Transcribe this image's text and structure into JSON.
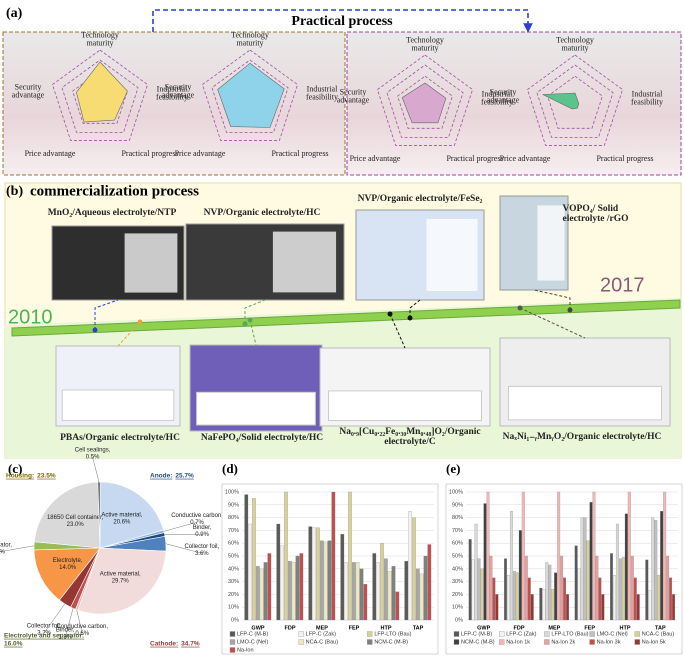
{
  "panel_a": {
    "label": "(a)",
    "title": "Practical process",
    "axes": [
      "Technology maturity",
      "Industrial feasibility",
      "Practical progress",
      "Price advantage",
      "Security advantage"
    ],
    "radars": [
      {
        "color": "#f6dc72",
        "values": [
          0.95,
          0.72,
          0.62,
          0.68,
          0.62
        ]
      },
      {
        "color": "#8fd3ea",
        "values": [
          0.92,
          0.9,
          0.85,
          0.82,
          0.85
        ]
      },
      {
        "color": "#d9a8cf",
        "values": [
          0.55,
          0.55,
          0.55,
          0.55,
          0.6
        ]
      },
      {
        "color": "#5cc48a",
        "values": [
          0.3,
          0.1,
          0.1,
          0.12,
          0.85
        ]
      }
    ]
  },
  "panel_b": {
    "label": "(b)",
    "title": "commercialization process",
    "start_year": 2010,
    "end_year": 2017,
    "top_items": [
      "MnO₂/Aqueous electrolyte/NTP",
      "NVP/Organic electrolyte/HC",
      "NVP/Organic electrolyte/FeSe₂",
      "VOPO₄/ Solid electrolyte /rGO"
    ],
    "bottom_items": [
      "PBAs/Organic electrolyte/HC",
      "NaFePO₄/Solid electrolyte/HC",
      "Na₀.₉[Cu₀.₂₂Fe₀.₃₀Mn₀.₄₈]O₂/Organic electrolyte/C",
      "NaₓNi₁₋ᵧMnᵧO₂/Organic electrolyte/HC"
    ]
  },
  "chart_data": [
    {
      "type": "pie",
      "label": "(c)",
      "labels": [
        "Active material,",
        "Conductive carbon,",
        "Binder,",
        "Collector foil,",
        "Active material,",
        "Conductive carbon,",
        "Binder,",
        "Collector foil,",
        "Electrolyte,",
        "Separator,",
        "18650 Cell container,",
        "Cell sealings,"
      ],
      "values": [
        20.6,
        0.7,
        0.9,
        3.6,
        29.7,
        0.6,
        1.3,
        3.2,
        14.0,
        2.0,
        23.0,
        0.5
      ],
      "value_labels": [
        "20.6%",
        "0.7%",
        "0.9%",
        "3.6%",
        "29.7%",
        "0.6%",
        "1.3%",
        "3.2%",
        "14.0%",
        "2.0%",
        "23.0%",
        "0.5%"
      ],
      "colors": [
        "#c6d9f1",
        "#8db3e2",
        "#1f497d",
        "#4f81bd",
        "#f2dcdb",
        "#e6b9b8",
        "#c0504d",
        "#953735",
        "#f79646",
        "#9bbb59",
        "#d9d9d9",
        "#404040"
      ],
      "groups": [
        {
          "label": "Anode:",
          "value": 25.7,
          "value_label": "25.7%",
          "color": "#1f497d"
        },
        {
          "label": "Cathode:",
          "value": 34.7,
          "value_label": "34.7%",
          "color": "#953735"
        },
        {
          "label": "Electrolyte and separator:",
          "value": 16.0,
          "value_label": "16.0%",
          "color": "#4f6228"
        },
        {
          "label": "Housing:",
          "value": 23.5,
          "value_label": "23.5%",
          "color": "#7f6000"
        }
      ]
    },
    {
      "type": "bar",
      "label": "(d)",
      "categories": [
        "GWP",
        "FDP",
        "MEP",
        "FEP",
        "HTP",
        "TAP"
      ],
      "series": [
        {
          "name": "LFP-C (M-B)",
          "color": "#595959",
          "values": [
            98,
            75,
            73,
            67,
            52,
            46
          ]
        },
        {
          "name": "LFP-C (Zak)",
          "color": "#f2f2f2",
          "values": [
            75,
            58,
            72,
            45,
            45,
            85
          ]
        },
        {
          "name": "LFP-LTO (Bau)",
          "color": "#d6d29a",
          "values": [
            95,
            100,
            72,
            100,
            60,
            80
          ]
        },
        {
          "name": "LMO-C (Nel)",
          "color": "#a6a6a6",
          "values": [
            42,
            46,
            62,
            45,
            48,
            40
          ]
        },
        {
          "name": "NCA-C (Bau)",
          "color": "#ebe7c0",
          "values": [
            40,
            45,
            61,
            45,
            38,
            36
          ]
        },
        {
          "name": "NCM-C (M-B)",
          "color": "#7f7f7f",
          "values": [
            45,
            50,
            62,
            40,
            42,
            50
          ]
        },
        {
          "name": "Na-Ion",
          "color": "#c0504d",
          "values": [
            52,
            52,
            100,
            28,
            22,
            59
          ]
        }
      ],
      "ylim": [
        0,
        100
      ],
      "yticks": [
        {
          "value": 0,
          "label": "0%"
        },
        {
          "value": 10,
          "label": "10%"
        },
        {
          "value": 20,
          "label": "20%"
        },
        {
          "value": 30,
          "label": "30%"
        },
        {
          "value": 40,
          "label": "40%"
        },
        {
          "value": 50,
          "label": "50%"
        },
        {
          "value": 60,
          "label": "60%"
        },
        {
          "value": 70,
          "label": "70%"
        },
        {
          "value": 80,
          "label": "80%"
        },
        {
          "value": 90,
          "label": "90%"
        },
        {
          "value": 100,
          "label": "100%"
        }
      ],
      "grid": true
    },
    {
      "type": "bar",
      "label": "(e)",
      "categories": [
        "GWP",
        "FDP",
        "MEP",
        "FEP",
        "HTP",
        "TAP"
      ],
      "series": [
        {
          "name": "LFP-C (M-B)",
          "color": "#595959",
          "values": [
            63,
            48,
            25,
            58,
            52,
            47
          ]
        },
        {
          "name": "LFP-C (Zak)",
          "color": "#f2f2f2",
          "values": [
            47,
            35,
            24,
            40,
            35,
            23
          ]
        },
        {
          "name": "LFP-LTO (Bau)",
          "color": "#d9d9d9",
          "values": [
            75,
            85,
            45,
            80,
            75,
            80
          ]
        },
        {
          "name": "LMO-C (Nel)",
          "color": "#bfbfbf",
          "values": [
            48,
            38,
            43,
            80,
            48,
            78
          ]
        },
        {
          "name": "NCA-C (Bau)",
          "color": "#d6d29a",
          "values": [
            40,
            37,
            24,
            62,
            49,
            35
          ]
        },
        {
          "name": "NCM-C (M-B)",
          "color": "#404040",
          "values": [
            91,
            70,
            37,
            92,
            83,
            85
          ]
        },
        {
          "name": "Na-Ion 1k",
          "color": "#f4b6b4",
          "values": [
            100,
            100,
            100,
            100,
            100,
            100
          ]
        },
        {
          "name": "Na-Ion 2k",
          "color": "#e6a09e",
          "values": [
            50,
            50,
            50,
            50,
            50,
            50
          ]
        },
        {
          "name": "Na-Ion 3k",
          "color": "#c0504d",
          "values": [
            33,
            33,
            33,
            33,
            33,
            33
          ]
        },
        {
          "name": "Na-Ion 5k",
          "color": "#953735",
          "values": [
            20,
            20,
            20,
            20,
            20,
            20
          ]
        }
      ],
      "ylim": [
        0,
        100
      ],
      "yticks": [
        {
          "value": 0,
          "label": "0%"
        },
        {
          "value": 10,
          "label": "10%"
        },
        {
          "value": 20,
          "label": "20%"
        },
        {
          "value": 30,
          "label": "30%"
        },
        {
          "value": 40,
          "label": "40%"
        },
        {
          "value": 50,
          "label": "50%"
        },
        {
          "value": 60,
          "label": "60%"
        },
        {
          "value": 70,
          "label": "70%"
        },
        {
          "value": 80,
          "label": "80%"
        },
        {
          "value": 90,
          "label": "90%"
        },
        {
          "value": 100,
          "label": "100%"
        }
      ],
      "grid": true
    }
  ]
}
